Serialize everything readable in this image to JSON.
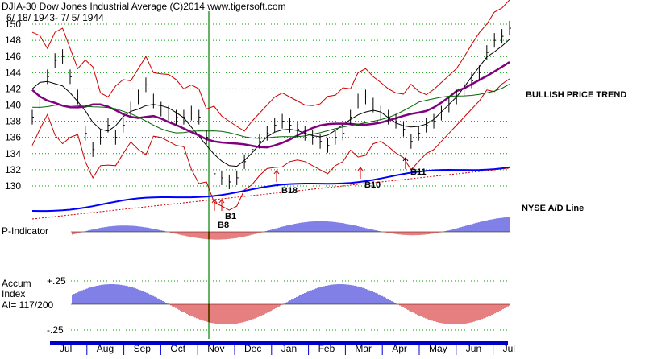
{
  "header": {
    "title": "DJIA-30  Dow Jones Industrial Average    (C)2014 www.tigersoft.com",
    "date_range": "6/ 18/ 1943- 7/ 5/ 1944"
  },
  "annotations": {
    "trend": "BULLISH PRICE TREND",
    "ad_line": "NYSE A/D Line",
    "p_indicator": "P-Indicator",
    "accum_line1": "Accum",
    "accum_line2": "Index",
    "accum_line3": "AI= 117/200",
    "accum_plus": "+.25",
    "accum_minus": "-.25",
    "signals": [
      "B18",
      "B10",
      "B11",
      "B8",
      "B1"
    ]
  },
  "colors": {
    "price_bars": "#000000",
    "upper_band": "#cc0000",
    "lower_band": "#cc0000",
    "ma_black": "#000000",
    "ma_purple": "#800080",
    "ma_green": "#006600",
    "ad_line": "#0000ff",
    "pos_bars": "#0000cc",
    "neg_bars": "#cc0000",
    "vertical_marker": "#008000",
    "grid": "#00a000",
    "axis_bar": "#0000cc"
  },
  "chart_data": {
    "type": "line",
    "title": "DJIA-30  Dow Jones Industrial Average",
    "ylim": [
      129,
      151
    ],
    "y_ticks": [
      130,
      132,
      134,
      136,
      138,
      140,
      142,
      144,
      146,
      148,
      150
    ],
    "grid": true,
    "x_month_labels": [
      "Jul",
      "Aug",
      "Sep",
      "Oct",
      "Nov",
      "Dec",
      "Jan",
      "Feb",
      "Mar",
      "Apr",
      "May",
      "Jun",
      "Jul"
    ],
    "x_tick_labels": [
      "Jul",
      "Aug",
      "Sep",
      "Oct",
      "Nov",
      "Dec",
      "Jan",
      "Feb",
      "Mar",
      "Apr",
      "May",
      "Jun",
      "Jul"
    ],
    "series": [
      {
        "name": "DJIA",
        "values": [
          138.5,
          140.5,
          143.5,
          145.5,
          146.0,
          143.5,
          141.0,
          136.5,
          134.5,
          136.0,
          137.5,
          136.0,
          137.5,
          139.5,
          141.0,
          142.5,
          140.5,
          139.5,
          139.0,
          138.5,
          138.5,
          139.0,
          138.5,
          136.0,
          131.5,
          131.0,
          130.5,
          131.0,
          133.0,
          134.5,
          135.5,
          136.5,
          137.5,
          138.0,
          137.5,
          137.0,
          136.5,
          136.0,
          135.5,
          135.0,
          136.0,
          136.5,
          138.5,
          140.5,
          141.0,
          140.0,
          139.0,
          138.5,
          138.0,
          137.0,
          135.5,
          136.5,
          137.5,
          138.0,
          139.0,
          140.0,
          141.0,
          142.0,
          143.0,
          144.0,
          146.5,
          148.0,
          148.5,
          149.5
        ]
      }
    ]
  }
}
